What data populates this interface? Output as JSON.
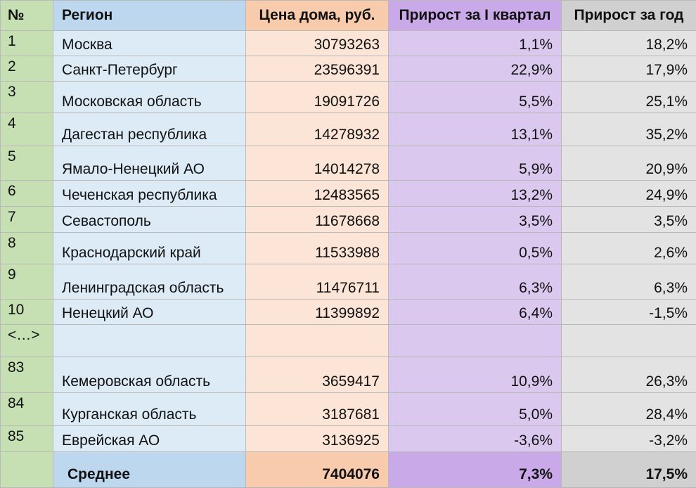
{
  "header": {
    "num": "№",
    "region": "Регион",
    "price": "Цена дома, руб.",
    "q_growth": "Прирост за I квартал",
    "y_growth": "Прирост за год"
  },
  "rows": [
    {
      "num": "1",
      "region": "Москва",
      "price": "30793263",
      "q": "1,1%",
      "y": "18,2%"
    },
    {
      "num": "2",
      "region": "Санкт-Петербург",
      "price": "23596391",
      "q": "22,9%",
      "y": "17,9%"
    },
    {
      "num": "3",
      "region": "Московская область",
      "price": "19091726",
      "q": "5,5%",
      "y": "25,1%"
    },
    {
      "num": "4",
      "region": "Дагестан республика",
      "price": "14278932",
      "q": "13,1%",
      "y": "35,2%"
    },
    {
      "num": "5",
      "region": "Ямало-Ненецкий АО",
      "price": "14014278",
      "q": "5,9%",
      "y": "20,9%"
    },
    {
      "num": "6",
      "region": "Чеченская республика",
      "price": "12483565",
      "q": "13,2%",
      "y": "24,9%"
    },
    {
      "num": "7",
      "region": "Севастополь",
      "price": "11678668",
      "q": "3,5%",
      "y": "3,5%"
    },
    {
      "num": "8",
      "region": "Краснодарский край",
      "price": "11533988",
      "q": "0,5%",
      "y": "2,6%"
    },
    {
      "num": "9",
      "region": "Ленинградская область",
      "price": "11476711",
      "q": "6,3%",
      "y": "6,3%"
    },
    {
      "num": "10",
      "region": "Ненецкий АО",
      "price": "11399892",
      "q": "6,4%",
      "y": "-1,5%"
    },
    {
      "num": "<…>",
      "region": "",
      "price": "",
      "q": "",
      "y": ""
    },
    {
      "num": "83",
      "region": "Кемеровская область",
      "price": "3659417",
      "q": "10,9%",
      "y": "26,3%"
    },
    {
      "num": "84",
      "region": "Курганская область",
      "price": "3187681",
      "q": "5,0%",
      "y": "28,4%"
    },
    {
      "num": "85",
      "region": "Еврейская АО",
      "price": "3136925",
      "q": "-3,6%",
      "y": "-3,2%"
    }
  ],
  "footer": {
    "num": "",
    "label": "Среднее",
    "price": "7404076",
    "q": "7,3%",
    "y": "17,5%"
  },
  "colors": {
    "num": "#c6e0b4",
    "region": "#ddebf7",
    "price": "#fce4d6",
    "q_growth": "#dbc8ee",
    "y_growth": "#e3e3e3"
  }
}
